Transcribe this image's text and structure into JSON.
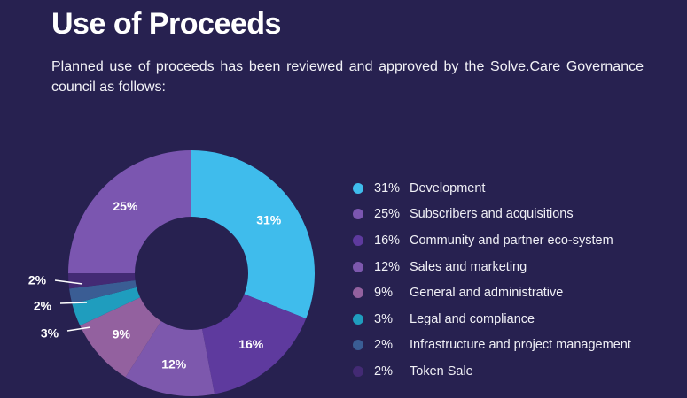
{
  "header": {
    "title": "Use of Proceeds",
    "intro": "Planned use of proceeds has been reviewed and approved by the Solve.Care Governance council as follows:"
  },
  "chart_data": {
    "type": "pie",
    "subtype": "donut",
    "categories": [
      "Development",
      "Subscribers and acquisitions",
      "Community and partner eco-system",
      "Sales and marketing",
      "General and administrative",
      "Legal and compliance",
      "Infrastructure and project management",
      "Token Sale"
    ],
    "values": [
      31,
      25,
      16,
      12,
      9,
      3,
      2,
      2
    ],
    "value_labels": [
      "31%",
      "25%",
      "16%",
      "12%",
      "9%",
      "3%",
      "2%",
      "2%"
    ],
    "legend_labels": [
      "31%",
      "25%",
      "16%",
      "12%",
      "9%",
      "3%",
      "2%",
      "2%"
    ],
    "colors": [
      "#3fbcec",
      "#7b56b0",
      "#5e3a9e",
      "#7d58ad",
      "#93619f",
      "#1f9dbe",
      "#3a5d94",
      "#432a74"
    ],
    "slice_order_clockwise_from_top": [
      "Development",
      "Community and partner eco-system",
      "Sales and marketing",
      "General and administrative",
      "Legal and compliance",
      "Infrastructure and project management",
      "Token Sale",
      "Subscribers and acquisitions"
    ],
    "legend_position": "right"
  }
}
